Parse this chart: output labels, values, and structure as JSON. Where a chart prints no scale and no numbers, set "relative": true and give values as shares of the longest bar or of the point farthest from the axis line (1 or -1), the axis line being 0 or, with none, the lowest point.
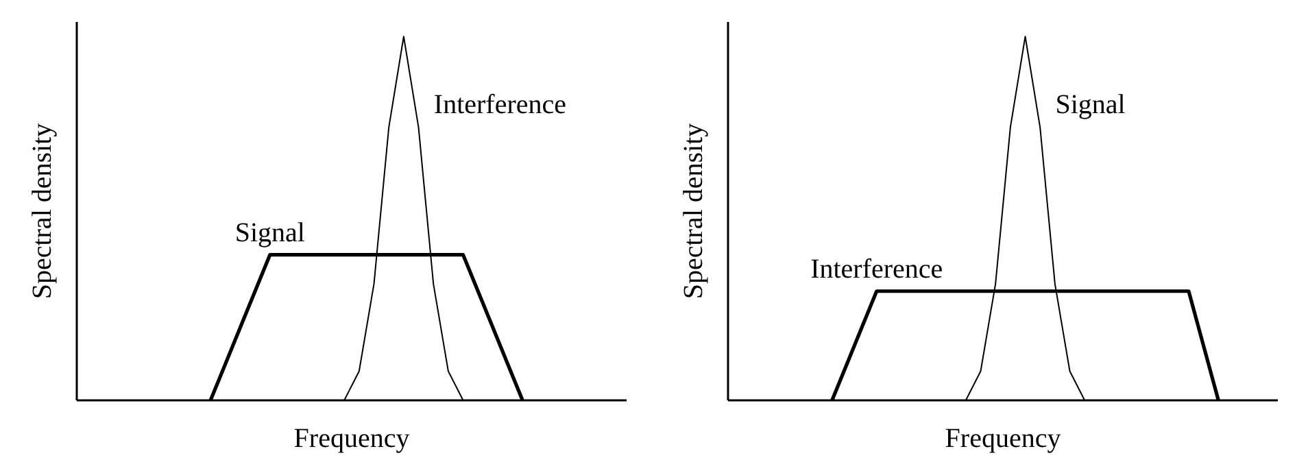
{
  "chart_data": [
    {
      "type": "line",
      "relative": true,
      "xlabel": "Frequency",
      "ylabel": "Spectral density",
      "grid": false,
      "legend": false,
      "marker": "none",
      "categories": [
        null,
        null,
        null,
        null,
        null,
        null,
        null,
        null,
        null,
        null,
        null,
        null,
        null,
        null,
        null,
        null,
        null,
        null,
        null,
        null,
        null,
        null,
        null,
        null,
        null,
        null,
        null,
        null,
        null,
        null,
        null,
        null,
        null,
        null
      ],
      "series": [
        {
          "name": "Signal",
          "color": "#000000",
          "values": [
            null,
            null,
            null,
            null,
            null,
            null,
            0,
            0.1,
            0.2,
            0.3,
            0.4,
            0.4,
            0.4,
            0.4,
            0.4,
            0.4,
            0.4,
            0.4,
            0.4,
            0.4,
            0.4,
            0.4,
            0.4,
            0.4,
            0.3,
            0.2,
            0.1,
            0,
            null,
            null,
            null,
            null,
            null,
            null
          ]
        },
        {
          "name": "Interference",
          "color": "#000000",
          "values": [
            null,
            null,
            null,
            null,
            null,
            null,
            null,
            null,
            null,
            null,
            null,
            null,
            null,
            null,
            null,
            0,
            0.08,
            0.32,
            0.75,
            1,
            0.75,
            0.32,
            0.08,
            0,
            null,
            null,
            null,
            null,
            null,
            null,
            null,
            null,
            null,
            null
          ]
        }
      ]
    },
    {
      "type": "line",
      "relative": true,
      "xlabel": "Frequency",
      "ylabel": "Spectral density",
      "grid": false,
      "legend": false,
      "marker": "none",
      "categories": [
        null,
        null,
        null,
        null,
        null,
        null,
        null,
        null,
        null,
        null,
        null,
        null,
        null,
        null,
        null,
        null,
        null,
        null,
        null,
        null,
        null,
        null,
        null,
        null,
        null,
        null,
        null,
        null,
        null,
        null,
        null,
        null,
        null,
        null
      ],
      "series": [
        {
          "name": "Interference",
          "color": "#000000",
          "values": [
            null,
            null,
            null,
            null,
            0,
            0.1,
            0.2,
            0.3,
            0.3,
            0.3,
            0.3,
            0.3,
            0.3,
            0.3,
            0.3,
            0.3,
            0.3,
            0.3,
            0.3,
            0.3,
            0.3,
            0.3,
            0.3,
            0.3,
            0.3,
            0.3,
            0.3,
            0.3,
            0.3,
            0.15,
            0,
            null,
            null,
            null
          ]
        },
        {
          "name": "Signal",
          "color": "#000000",
          "values": [
            null,
            null,
            null,
            null,
            null,
            null,
            null,
            null,
            null,
            null,
            null,
            null,
            null,
            0,
            0.08,
            0.32,
            0.75,
            1,
            0.75,
            0.32,
            0.08,
            0,
            null,
            null,
            null,
            null,
            null,
            null,
            null,
            null,
            null,
            null,
            null,
            null
          ]
        }
      ]
    }
  ]
}
